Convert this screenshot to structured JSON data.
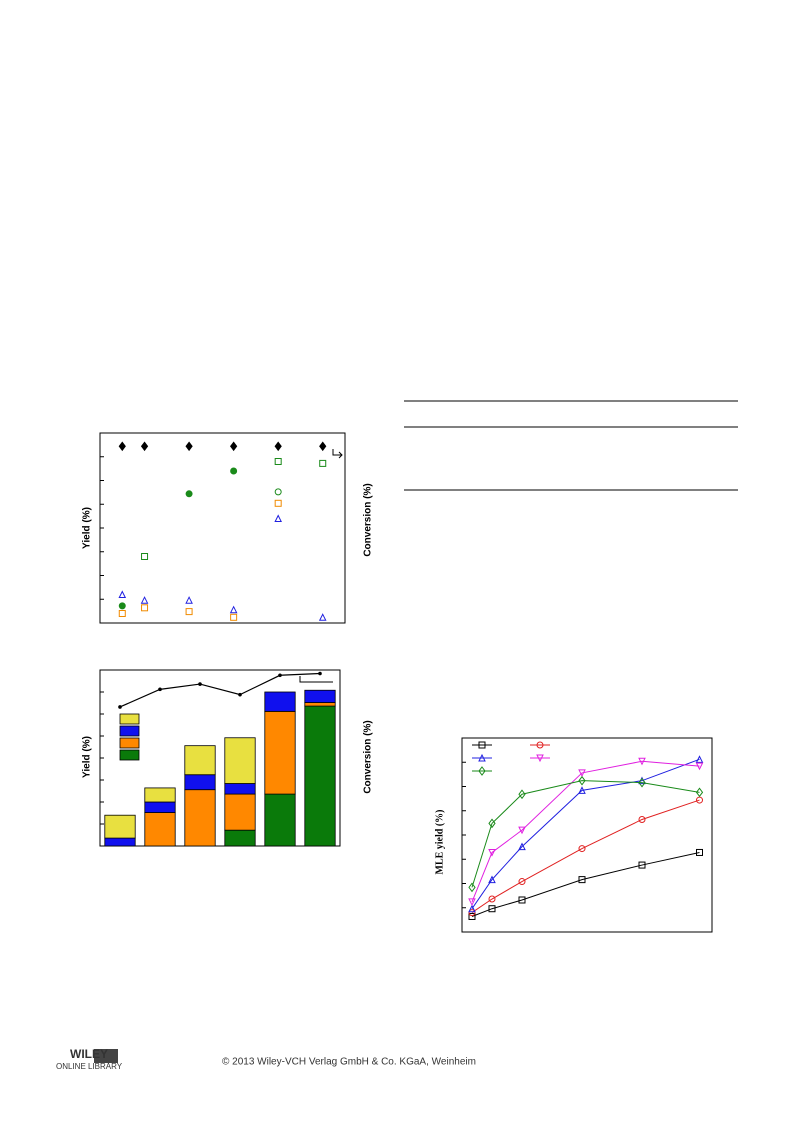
{
  "chart_data": [
    {
      "type": "scatter",
      "y_label": "Yield (%)",
      "y2_label": "Conversion (%)",
      "xlim": [
        0,
        11
      ],
      "ylim": [
        0,
        100
      ],
      "series": [
        {
          "color": "#000000",
          "marker": "diamond-filled",
          "x": [
            1,
            2,
            4,
            6,
            8,
            10
          ],
          "values": [
            93,
            93,
            93,
            93,
            93,
            93
          ]
        },
        {
          "color": "#1a8a1a",
          "marker": "circle-filled",
          "x": [
            1,
            4,
            6
          ],
          "values": [
            9,
            68,
            80
          ]
        },
        {
          "color": "#1a8a1a",
          "marker": "square-open",
          "x": [
            2,
            8,
            10
          ],
          "values": [
            35,
            85,
            84
          ]
        },
        {
          "color": "#1a8a1a",
          "marker": "circle-open",
          "x": [
            8
          ],
          "values": [
            69
          ]
        },
        {
          "color": "#f08a00",
          "marker": "square-open",
          "x": [
            1,
            2,
            4,
            6,
            8
          ],
          "values": [
            5,
            8,
            6,
            3,
            63
          ]
        },
        {
          "color": "#2020e0",
          "marker": "triangle-open",
          "x": [
            1,
            2,
            4,
            6,
            8,
            10
          ],
          "values": [
            15,
            12,
            12,
            7,
            55,
            3
          ]
        }
      ]
    },
    {
      "type": "bar",
      "stacked": true,
      "y_label": "Yield (%)",
      "y2_label": "Conversion (%)",
      "ylim": [
        0,
        100
      ],
      "categories": [
        null,
        null,
        null,
        null,
        null,
        null
      ],
      "series": [
        {
          "color": "#0a7a0a",
          "values": [
            0,
            0,
            0,
            9,
            29.5,
            79.5
          ]
        },
        {
          "color": "#ff8800",
          "values": [
            0,
            19,
            32,
            20.5,
            47,
            2
          ]
        },
        {
          "color": "#1010ee",
          "values": [
            4.5,
            6,
            8.5,
            6,
            11,
            7
          ]
        },
        {
          "color": "#e8e040",
          "values": [
            13,
            8,
            16.5,
            26,
            0,
            0
          ]
        }
      ],
      "line": {
        "color": "#000000",
        "values": [
          79,
          89,
          92,
          86,
          97,
          98
        ]
      }
    },
    {
      "type": "line",
      "y_label": "MLE yield (%)",
      "xlim": [
        0,
        100
      ],
      "ylim": [
        0,
        100
      ],
      "x": [
        4,
        12,
        24,
        48,
        72,
        95
      ],
      "series": [
        {
          "color": "#000000",
          "marker": "square-open",
          "values": [
            8,
            12,
            16.5,
            27,
            34.5,
            41
          ]
        },
        {
          "color": "#e02020",
          "marker": "circle-open",
          "values": [
            10,
            17,
            26,
            43,
            58,
            68
          ]
        },
        {
          "color": "#2020e0",
          "marker": "triangle-open",
          "values": [
            12,
            27,
            44,
            73,
            78,
            89
          ]
        },
        {
          "color": "#e020e0",
          "marker": "triangledown-open",
          "values": [
            15.5,
            41,
            52.5,
            82,
            88,
            85.5
          ]
        },
        {
          "color": "#1a8a1a",
          "marker": "diamond-open",
          "values": [
            23,
            56,
            71,
            78,
            77,
            72
          ]
        }
      ]
    }
  ],
  "footer": {
    "logo": "WILEY",
    "logo_sub": "ONLINE LIBRARY",
    "copyright": "© 2013 Wiley-VCH Verlag GmbH & Co. KGaA, Weinheim"
  }
}
